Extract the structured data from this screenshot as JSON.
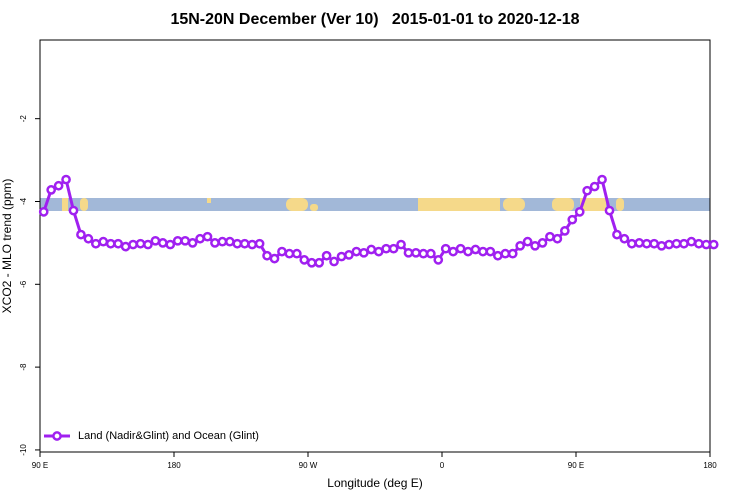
{
  "chart_data": {
    "type": "line",
    "title": "15N-20N December (Ver 10)   2015-01-01 to 2020-12-18",
    "x_label": "Longitude (deg E)",
    "y_label": "XCO2 - MLO trend (ppm)",
    "xlim": [
      90,
      540
    ],
    "xticks": [
      {
        "value": 90,
        "label": "90 E"
      },
      180,
      {
        "value": 270,
        "label": "90 W"
      },
      {
        "value": 360,
        "label": "0"
      },
      {
        "value": 450,
        "label": "90 E"
      },
      {
        "value": 540,
        "label": "180"
      }
    ],
    "ylim": [
      -10.05,
      -0.1
    ],
    "yticks": [
      -10,
      -8,
      -6,
      -4,
      -2
    ],
    "legend": "bottom-left",
    "x": [
      92.5,
      97.5,
      102.5,
      107.5,
      112.5,
      117.5,
      122.5,
      127.5,
      132.5,
      137.5,
      142.5,
      147.5,
      152.5,
      157.5,
      162.5,
      167.5,
      172.5,
      177.5,
      182.5,
      187.5,
      192.5,
      197.5,
      202.5,
      207.5,
      212.5,
      217.5,
      222.5,
      227.5,
      232.5,
      237.5,
      242.5,
      247.5,
      252.5,
      257.5,
      262.5,
      267.5,
      272.5,
      277.5,
      282.5,
      287.5,
      292.5,
      297.5,
      302.5,
      307.5,
      312.5,
      317.5,
      322.5,
      327.5,
      332.5,
      337.5,
      342.5,
      347.5,
      352.5,
      357.5,
      362.5,
      367.5,
      372.5,
      377.5,
      382.5,
      387.5,
      392.5,
      397.5,
      402.5,
      407.5,
      412.5,
      417.5,
      422.5,
      427.5,
      432.5,
      437.5,
      442.5,
      447.5,
      452.5,
      457.5,
      462.5,
      467.5,
      472.5,
      477.5,
      482.5,
      487.5,
      492.5,
      497.5,
      502.5,
      507.5,
      512.5,
      517.5,
      522.5,
      527.5,
      532.5,
      537.5,
      542.5
    ],
    "series": [
      {
        "name": "Land (Nadir&Glint) and Ocean (Glint)",
        "color": "#a020f0",
        "values": [
          -4.25,
          -3.72,
          -3.62,
          -3.47,
          -4.22,
          -4.8,
          -4.9,
          -5.02,
          -4.97,
          -5.02,
          -5.02,
          -5.09,
          -5.04,
          -5.02,
          -5.04,
          -4.95,
          -5.0,
          -5.04,
          -4.95,
          -4.95,
          -5.0,
          -4.9,
          -4.85,
          -5.0,
          -4.97,
          -4.97,
          -5.02,
          -5.02,
          -5.04,
          -5.02,
          -5.31,
          -5.38,
          -5.21,
          -5.26,
          -5.26,
          -5.41,
          -5.48,
          -5.48,
          -5.31,
          -5.45,
          -5.33,
          -5.29,
          -5.21,
          -5.24,
          -5.16,
          -5.21,
          -5.14,
          -5.14,
          -5.04,
          -5.24,
          -5.24,
          -5.26,
          -5.26,
          -5.41,
          -5.14,
          -5.21,
          -5.14,
          -5.21,
          -5.16,
          -5.21,
          -5.21,
          -5.31,
          -5.26,
          -5.26,
          -5.07,
          -4.97,
          -5.07,
          -5.0,
          -4.85,
          -4.9,
          -4.71,
          -4.44,
          -4.25,
          -3.74,
          -3.64,
          -3.47,
          -4.22,
          -4.8,
          -4.9,
          -5.02,
          -5.0,
          -5.02,
          -5.02,
          -5.07,
          -5.04,
          -5.02,
          -5.02,
          -4.97,
          -5.02,
          -5.04,
          -5.04
        ]
      }
    ]
  }
}
